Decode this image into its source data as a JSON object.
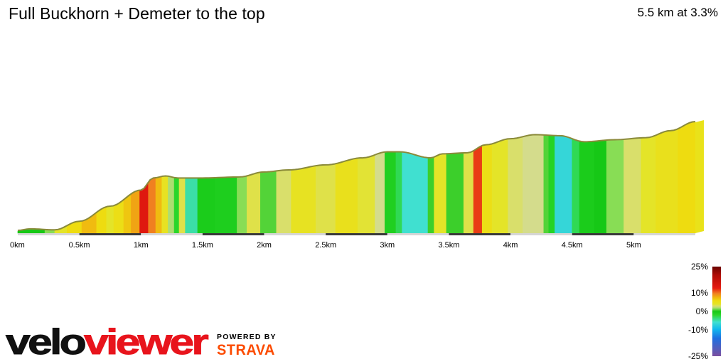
{
  "header": {
    "title": "Full Buckhorn + Demeter to the top",
    "summary": "5.5 km at 3.3%"
  },
  "chart_data": {
    "type": "area",
    "title": "Full Buckhorn + Demeter to the top",
    "xlabel": "",
    "ylabel": "",
    "x_unit": "km",
    "xlim": [
      0,
      5.5
    ],
    "x_ticks": [
      0,
      0.5,
      1,
      1.5,
      2,
      2.5,
      3,
      3.5,
      4,
      4.5,
      5
    ],
    "x_tick_labels": [
      "0km",
      "0.5km",
      "1km",
      "1.5km",
      "2km",
      "2.5km",
      "3km",
      "3.5km",
      "4km",
      "4.5km",
      "5km"
    ],
    "distance_km": 5.5,
    "avg_gradient_pct": 3.3,
    "relative_elevation": {
      "x": [
        0,
        0.1,
        0.3,
        0.5,
        0.75,
        1.0,
        1.1,
        1.2,
        1.3,
        1.5,
        1.8,
        2.0,
        2.2,
        2.5,
        2.8,
        3.0,
        3.1,
        3.35,
        3.45,
        3.65,
        3.8,
        4.0,
        4.2,
        4.4,
        4.6,
        4.85,
        5.1,
        5.3,
        5.5
      ],
      "y": [
        0,
        1.5,
        0.5,
        9,
        24,
        40,
        52,
        54,
        52,
        52,
        53,
        58,
        60,
        65,
        72,
        78,
        78,
        72,
        76,
        77,
        85,
        91,
        95,
        94,
        88,
        90,
        92,
        99,
        108
      ]
    },
    "segments": [
      {
        "x0": 0.0,
        "x1": 0.22,
        "gradient": 0.0
      },
      {
        "x0": 0.22,
        "x1": 0.3,
        "gradient": 1.5
      },
      {
        "x0": 0.3,
        "x1": 0.4,
        "gradient": 4.0
      },
      {
        "x0": 0.4,
        "x1": 0.52,
        "gradient": 6.0
      },
      {
        "x0": 0.52,
        "x1": 0.64,
        "gradient": 7.5
      },
      {
        "x0": 0.64,
        "x1": 0.72,
        "gradient": 6.0
      },
      {
        "x0": 0.72,
        "x1": 0.78,
        "gradient": 4.0
      },
      {
        "x0": 0.78,
        "x1": 0.86,
        "gradient": 5.5
      },
      {
        "x0": 0.86,
        "x1": 0.92,
        "gradient": 7.0
      },
      {
        "x0": 0.92,
        "x1": 0.99,
        "gradient": 8.5
      },
      {
        "x0": 0.99,
        "x1": 1.06,
        "gradient": 14.0
      },
      {
        "x0": 1.06,
        "x1": 1.12,
        "gradient": 10.0
      },
      {
        "x0": 1.12,
        "x1": 1.17,
        "gradient": 7.5
      },
      {
        "x0": 1.17,
        "x1": 1.22,
        "gradient": 4.5
      },
      {
        "x0": 1.22,
        "x1": 1.27,
        "gradient": 2.0
      },
      {
        "x0": 1.27,
        "x1": 1.31,
        "gradient": -2.0
      },
      {
        "x0": 1.31,
        "x1": 1.36,
        "gradient": 3.5
      },
      {
        "x0": 1.36,
        "x1": 1.46,
        "gradient": -5.0
      },
      {
        "x0": 1.46,
        "x1": 1.6,
        "gradient": -0.5
      },
      {
        "x0": 1.6,
        "x1": 1.78,
        "gradient": -0.8
      },
      {
        "x0": 1.78,
        "x1": 1.86,
        "gradient": 1.5
      },
      {
        "x0": 1.86,
        "x1": 1.97,
        "gradient": 3.5
      },
      {
        "x0": 1.97,
        "x1": 2.1,
        "gradient": 0.8
      },
      {
        "x0": 2.1,
        "x1": 2.22,
        "gradient": 3.0
      },
      {
        "x0": 2.22,
        "x1": 2.42,
        "gradient": 4.5
      },
      {
        "x0": 2.42,
        "x1": 2.58,
        "gradient": 3.5
      },
      {
        "x0": 2.58,
        "x1": 2.76,
        "gradient": 5.0
      },
      {
        "x0": 2.76,
        "x1": 2.9,
        "gradient": 3.8
      },
      {
        "x0": 2.9,
        "x1": 2.98,
        "gradient": 2.5
      },
      {
        "x0": 2.98,
        "x1": 3.07,
        "gradient": -1.0
      },
      {
        "x0": 3.07,
        "x1": 3.12,
        "gradient": -3.0
      },
      {
        "x0": 3.12,
        "x1": 3.33,
        "gradient": -6.0
      },
      {
        "x0": 3.33,
        "x1": 3.38,
        "gradient": 0.5
      },
      {
        "x0": 3.38,
        "x1": 3.48,
        "gradient": 4.0
      },
      {
        "x0": 3.48,
        "x1": 3.62,
        "gradient": 0.5
      },
      {
        "x0": 3.62,
        "x1": 3.7,
        "gradient": 3.5
      },
      {
        "x0": 3.7,
        "x1": 3.77,
        "gradient": 12.0
      },
      {
        "x0": 3.77,
        "x1": 3.85,
        "gradient": 5.5
      },
      {
        "x0": 3.85,
        "x1": 3.98,
        "gradient": 4.0
      },
      {
        "x0": 3.98,
        "x1": 4.1,
        "gradient": 3.0
      },
      {
        "x0": 4.1,
        "x1": 4.27,
        "gradient": 2.5
      },
      {
        "x0": 4.27,
        "x1": 4.31,
        "gradient": 0.8
      },
      {
        "x0": 4.31,
        "x1": 4.36,
        "gradient": -1.5
      },
      {
        "x0": 4.36,
        "x1": 4.5,
        "gradient": -7.0
      },
      {
        "x0": 4.5,
        "x1": 4.56,
        "gradient": -3.0
      },
      {
        "x0": 4.56,
        "x1": 4.68,
        "gradient": -0.5
      },
      {
        "x0": 4.68,
        "x1": 4.78,
        "gradient": 0.0
      },
      {
        "x0": 4.78,
        "x1": 4.92,
        "gradient": 1.5
      },
      {
        "x0": 4.92,
        "x1": 5.06,
        "gradient": 3.0
      },
      {
        "x0": 5.06,
        "x1": 5.18,
        "gradient": 4.0
      },
      {
        "x0": 5.18,
        "x1": 5.36,
        "gradient": 5.0
      },
      {
        "x0": 5.36,
        "x1": 5.5,
        "gradient": 6.0
      }
    ],
    "gradient_scale": {
      "labels": [
        "25%",
        "10%",
        "0%",
        "-10%",
        "-25%"
      ],
      "values": [
        25,
        10,
        0,
        -10,
        -25
      ]
    }
  },
  "branding": {
    "logo_text": "veloviewer",
    "powered_by": "POWERED BY",
    "strava": "STRAVA"
  },
  "colors": {
    "gradient_stops": [
      {
        "g": -25,
        "color": "#7b4fa0"
      },
      {
        "g": -15,
        "color": "#1e6fe0"
      },
      {
        "g": -10,
        "color": "#12b8ee"
      },
      {
        "g": -6,
        "color": "#40e0d0"
      },
      {
        "g": -2,
        "color": "#2ad62a"
      },
      {
        "g": 0,
        "color": "#16c816"
      },
      {
        "g": 1.5,
        "color": "#88dd55"
      },
      {
        "g": 2.5,
        "color": "#d4dc8c"
      },
      {
        "g": 4,
        "color": "#e4e428"
      },
      {
        "g": 6,
        "color": "#eedc10"
      },
      {
        "g": 8,
        "color": "#f0b010"
      },
      {
        "g": 10,
        "color": "#f08020"
      },
      {
        "g": 13,
        "color": "#e61a10"
      },
      {
        "g": 20,
        "color": "#b20c06"
      },
      {
        "g": 25,
        "color": "#6a0400"
      }
    ],
    "brand_orange": "#fc4c02"
  }
}
